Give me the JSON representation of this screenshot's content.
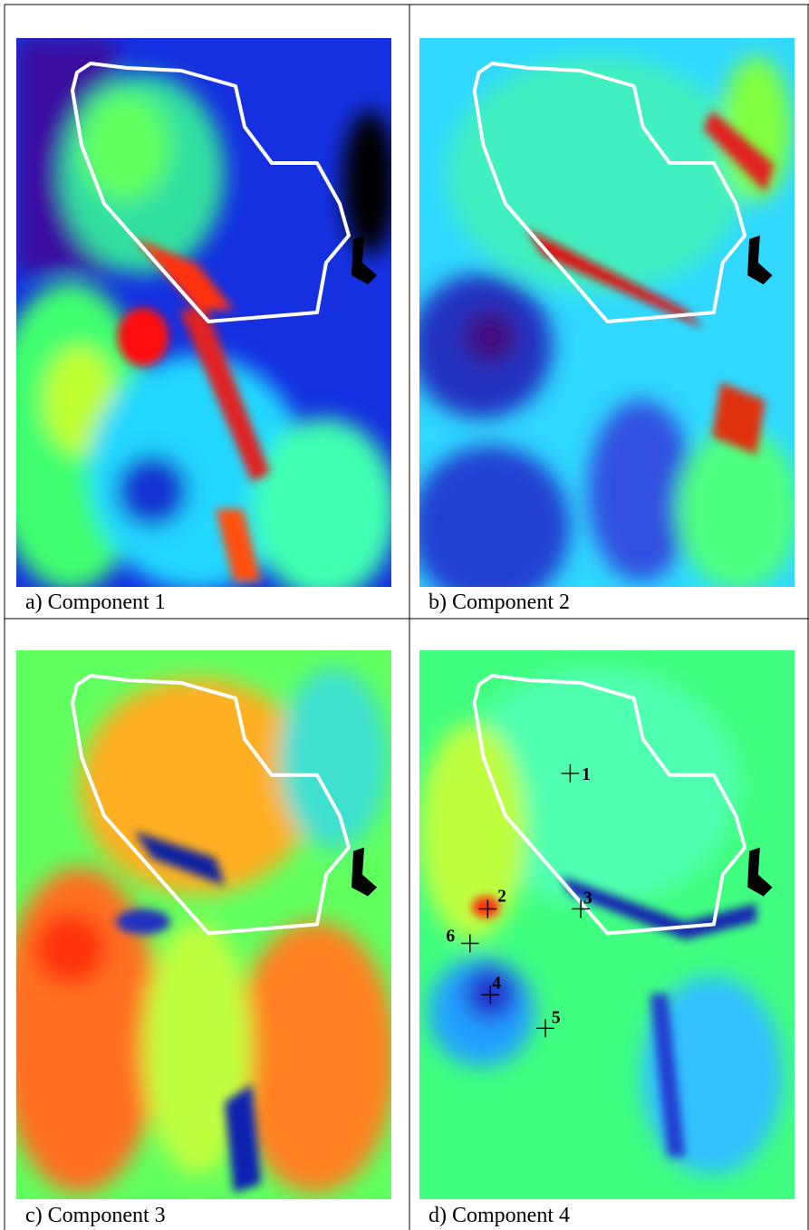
{
  "panels": [
    {
      "caption": "a) Component 1"
    },
    {
      "caption": "b) Component 2"
    },
    {
      "caption": "c) Component 3"
    },
    {
      "caption": "d) Component 4"
    }
  ],
  "markers": [
    {
      "label": "1"
    },
    {
      "label": "2"
    },
    {
      "label": "3"
    },
    {
      "label": "4"
    },
    {
      "label": "5"
    },
    {
      "label": "6"
    }
  ]
}
